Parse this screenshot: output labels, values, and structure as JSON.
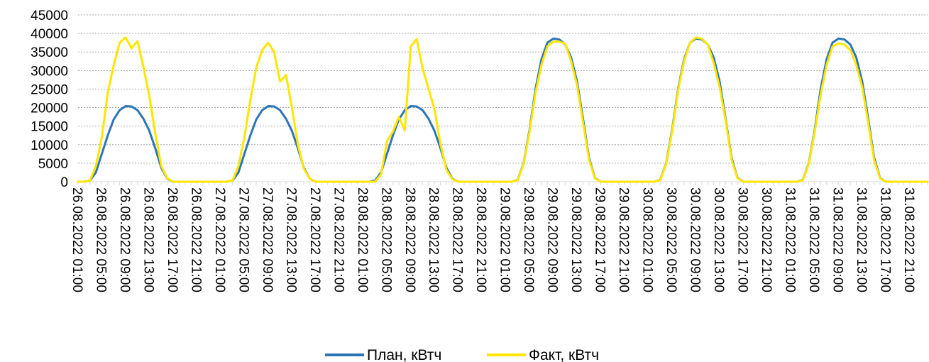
{
  "chart_data": {
    "type": "line",
    "title": "",
    "xlabel": "",
    "ylabel": "",
    "ylim": [
      0,
      45000
    ],
    "y_ticks": [
      0,
      5000,
      10000,
      15000,
      20000,
      25000,
      30000,
      35000,
      40000,
      45000
    ],
    "grid": "horizontal dotted",
    "legend_position": "bottom-center",
    "x_tick_labels": [
      "26.08.2022 01:00",
      "26.08.2022 05:00",
      "26.08.2022 09:00",
      "26.08.2022 13:00",
      "26.08.2022 17:00",
      "26.08.2022 21:00",
      "27.08.2022 01:00",
      "27.08.2022 05:00",
      "27.08.2022 09:00",
      "27.08.2022 13:00",
      "27.08.2022 17:00",
      "27.08.2022 21:00",
      "28.08.2022 01:00",
      "28.08.2022 05:00",
      "28.08.2022 09:00",
      "28.08.2022 13:00",
      "28.08.2022 17:00",
      "28.08.2022 21:00",
      "29.08.2022 01:00",
      "29.08.2022 05:00",
      "29.08.2022 09:00",
      "29.08.2022 13:00",
      "29.08.2022 17:00",
      "29.08.2022 21:00",
      "30.08.2022 01:00",
      "30.08.2022 05:00",
      "30.08.2022 09:00",
      "30.08.2022 13:00",
      "30.08.2022 17:00",
      "30.08.2022 21:00",
      "31.08.2022 01:00",
      "31.08.2022 05:00",
      "31.08.2022 09:00",
      "31.08.2022 13:00",
      "31.08.2022 17:00",
      "31.08.2022 21:00"
    ],
    "series": [
      {
        "name": "План, кВтч",
        "color": "#2e75b6",
        "values": [
          0,
          0,
          300,
          2500,
          7500,
          12500,
          16800,
          19300,
          20400,
          20300,
          19300,
          17000,
          13700,
          9000,
          3800,
          800,
          0,
          0,
          0,
          0,
          0,
          0,
          0,
          0,
          0,
          0,
          300,
          2500,
          7500,
          12500,
          16800,
          19300,
          20400,
          20300,
          19300,
          17000,
          13700,
          9000,
          3800,
          800,
          0,
          0,
          0,
          0,
          0,
          0,
          0,
          0,
          0,
          0,
          300,
          2500,
          7500,
          12500,
          16800,
          19300,
          20400,
          20300,
          19300,
          17000,
          13700,
          9000,
          3800,
          800,
          0,
          0,
          0,
          0,
          0,
          0,
          0,
          0,
          0,
          0,
          500,
          5000,
          14000,
          25000,
          33000,
          37500,
          38600,
          38400,
          37000,
          33500,
          27000,
          17000,
          6500,
          1000,
          0,
          0,
          0,
          0,
          0,
          0,
          0,
          0,
          0,
          0,
          500,
          5000,
          14000,
          25000,
          33000,
          37500,
          38600,
          38400,
          37000,
          33500,
          27000,
          17000,
          6500,
          1000,
          0,
          0,
          0,
          0,
          0,
          0,
          0,
          0,
          0,
          0,
          500,
          5000,
          14000,
          25000,
          33000,
          37500,
          38600,
          38400,
          37000,
          33500,
          27000,
          17000,
          6500,
          1000,
          0,
          0,
          0,
          0,
          0,
          0,
          0,
          0
        ]
      },
      {
        "name": "Факт, кВтч",
        "color": "#ffe600",
        "values": [
          0,
          0,
          300,
          4200,
          12000,
          24000,
          31500,
          37500,
          38900,
          36000,
          37900,
          31000,
          23000,
          13000,
          4300,
          900,
          0,
          0,
          0,
          0,
          0,
          0,
          0,
          0,
          0,
          0,
          300,
          4200,
          12000,
          22000,
          30800,
          35500,
          37500,
          35000,
          27000,
          28800,
          20000,
          10000,
          3500,
          800,
          0,
          0,
          0,
          0,
          0,
          0,
          0,
          0,
          0,
          0,
          0,
          2000,
          11000,
          13500,
          17500,
          13800,
          36500,
          38500,
          30500,
          25000,
          19500,
          10200,
          3200,
          700,
          0,
          0,
          0,
          0,
          0,
          0,
          0,
          0,
          0,
          0,
          400,
          4800,
          13500,
          24000,
          31500,
          36500,
          37800,
          37800,
          37200,
          32500,
          26000,
          16000,
          6000,
          900,
          0,
          0,
          0,
          0,
          0,
          0,
          0,
          0,
          0,
          0,
          400,
          4800,
          13500,
          24500,
          32500,
          37500,
          38900,
          38600,
          37000,
          32000,
          25500,
          16500,
          6000,
          900,
          0,
          0,
          0,
          0,
          0,
          0,
          0,
          0,
          0,
          0,
          400,
          4800,
          13500,
          23500,
          31500,
          36500,
          37300,
          37000,
          35500,
          31500,
          25500,
          16000,
          5800,
          900,
          0,
          0,
          0,
          0,
          0,
          0,
          0,
          0
        ]
      }
    ]
  }
}
